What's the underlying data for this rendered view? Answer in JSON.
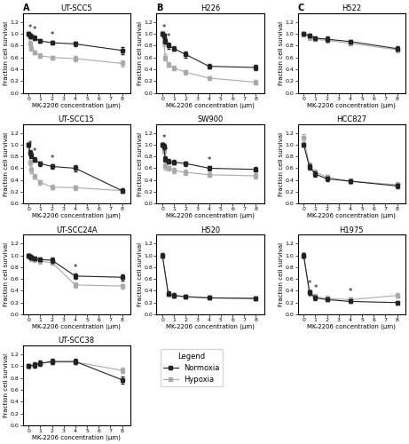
{
  "legend": "upper left",
  "legend_title": "Legend",
  "chart_data": [
    {
      "type": "line",
      "title": "UT-SCC5",
      "panel_label": "A",
      "xlabel": "MK-2206 concentration (μm)",
      "ylabel": "Fraction cell survival",
      "x": [
        0,
        0.125,
        0.25,
        0.5,
        1,
        2,
        4,
        8
      ],
      "xlim": [
        -0.5,
        8.7
      ],
      "xticks": [
        0,
        1,
        2,
        3,
        4,
        5,
        6,
        7,
        8
      ],
      "ylim": [
        0.0,
        1.35
      ],
      "yticks": [
        0.0,
        0.2,
        0.4,
        0.6,
        0.8,
        1.0,
        1.2
      ],
      "grid": false,
      "series": [
        {
          "name": "Normoxia",
          "color": "#222222",
          "marker": "square",
          "values": [
            1.0,
            0.97,
            0.95,
            0.93,
            0.88,
            0.85,
            0.83,
            0.72
          ],
          "errors": [
            0.03,
            0.04,
            0.03,
            0.04,
            0.03,
            0.03,
            0.04,
            0.06
          ]
        },
        {
          "name": "Hypoxia",
          "color": "#aaaaaa",
          "marker": "square",
          "values": [
            1.0,
            0.83,
            0.75,
            0.68,
            0.63,
            0.6,
            0.58,
            0.5
          ],
          "errors": [
            0.04,
            0.05,
            0.04,
            0.03,
            0.04,
            0.03,
            0.04,
            0.05
          ]
        }
      ],
      "annotations": [
        {
          "text": "*",
          "x": 0.125,
          "y": 1.04
        },
        {
          "text": "*",
          "x": 0.5,
          "y": 1.0
        },
        {
          "text": "*",
          "x": 2,
          "y": 0.91
        }
      ]
    },
    {
      "type": "line",
      "title": "H226",
      "panel_label": "B",
      "xlabel": "MK-2206 concentration (μm)",
      "ylabel": "Fraction cell survival",
      "x": [
        0,
        0.125,
        0.25,
        0.5,
        1,
        2,
        4,
        8
      ],
      "xlim": [
        -0.5,
        8.7
      ],
      "xticks": [
        0,
        1,
        2,
        3,
        4,
        5,
        6,
        7,
        8
      ],
      "ylim": [
        0.0,
        1.35
      ],
      "yticks": [
        0.0,
        0.2,
        0.4,
        0.6,
        0.8,
        1.0,
        1.2
      ],
      "grid": false,
      "series": [
        {
          "name": "Normoxia",
          "color": "#222222",
          "marker": "square",
          "values": [
            1.0,
            0.97,
            0.88,
            0.8,
            0.75,
            0.65,
            0.45,
            0.43
          ],
          "errors": [
            0.03,
            0.04,
            0.04,
            0.05,
            0.04,
            0.05,
            0.04,
            0.04
          ]
        },
        {
          "name": "Hypoxia",
          "color": "#aaaaaa",
          "marker": "square",
          "values": [
            1.0,
            0.85,
            0.6,
            0.48,
            0.42,
            0.35,
            0.25,
            0.18
          ],
          "errors": [
            0.05,
            0.06,
            0.05,
            0.04,
            0.04,
            0.04,
            0.03,
            0.04
          ]
        }
      ],
      "annotations": [
        {
          "text": "*",
          "x": 0.125,
          "y": 1.04
        },
        {
          "text": "*",
          "x": 0.5,
          "y": 0.88
        }
      ]
    },
    {
      "type": "line",
      "title": "H522",
      "panel_label": "C",
      "xlabel": "MK-2206 concentration (μm)",
      "ylabel": "Fraction cell survival",
      "x": [
        0,
        0.5,
        1,
        2,
        4,
        8
      ],
      "xlim": [
        -0.5,
        8.7
      ],
      "xticks": [
        0,
        1,
        2,
        3,
        4,
        5,
        6,
        7,
        8
      ],
      "ylim": [
        0.0,
        1.35
      ],
      "yticks": [
        0.0,
        0.2,
        0.4,
        0.6,
        0.8,
        1.0,
        1.2
      ],
      "grid": false,
      "series": [
        {
          "name": "Normoxia",
          "color": "#222222",
          "marker": "square",
          "values": [
            1.0,
            0.97,
            0.93,
            0.91,
            0.87,
            0.75
          ],
          "errors": [
            0.03,
            0.03,
            0.03,
            0.04,
            0.03,
            0.04
          ]
        },
        {
          "name": "Hypoxia",
          "color": "#aaaaaa",
          "marker": "square",
          "values": [
            1.0,
            0.94,
            0.91,
            0.89,
            0.84,
            0.73
          ],
          "errors": [
            0.04,
            0.04,
            0.03,
            0.04,
            0.04,
            0.04
          ]
        }
      ]
    },
    {
      "type": "line",
      "title": "UT-SCC15",
      "xlabel": "MK-2206 concentration (μm)",
      "ylabel": "Fraction cell survival",
      "x": [
        0,
        0.125,
        0.25,
        0.5,
        1,
        2,
        4,
        8
      ],
      "xlim": [
        -0.5,
        8.7
      ],
      "xticks": [
        0,
        1,
        2,
        3,
        4,
        5,
        6,
        7,
        8
      ],
      "ylim": [
        0.0,
        1.35
      ],
      "yticks": [
        0.0,
        0.2,
        0.4,
        0.6,
        0.8,
        1.0,
        1.2
      ],
      "grid": false,
      "series": [
        {
          "name": "Normoxia",
          "color": "#222222",
          "marker": "square",
          "values": [
            1.0,
            0.87,
            0.82,
            0.75,
            0.68,
            0.63,
            0.6,
            0.22
          ],
          "errors": [
            0.03,
            0.04,
            0.04,
            0.04,
            0.04,
            0.04,
            0.05,
            0.04
          ]
        },
        {
          "name": "Hypoxia",
          "color": "#aaaaaa",
          "marker": "square",
          "values": [
            1.0,
            0.7,
            0.57,
            0.46,
            0.36,
            0.28,
            0.27,
            0.22
          ],
          "errors": [
            0.05,
            0.05,
            0.05,
            0.04,
            0.04,
            0.04,
            0.04,
            0.04
          ]
        }
      ],
      "annotations": [
        {
          "text": "*",
          "x": 0.125,
          "y": 0.94
        },
        {
          "text": "*",
          "x": 0.5,
          "y": 0.82
        },
        {
          "text": "*",
          "x": 2,
          "y": 0.7
        }
      ]
    },
    {
      "type": "line",
      "title": "SW900",
      "xlabel": "MK-2206 concentration (μm)",
      "ylabel": "Fraction cell survival",
      "x": [
        0,
        0.125,
        0.25,
        0.5,
        1,
        2,
        4,
        8
      ],
      "xlim": [
        -0.5,
        8.7
      ],
      "xticks": [
        0,
        1,
        2,
        3,
        4,
        5,
        6,
        7,
        8
      ],
      "ylim": [
        0.0,
        1.35
      ],
      "yticks": [
        0.0,
        0.2,
        0.4,
        0.6,
        0.8,
        1.0,
        1.2
      ],
      "grid": false,
      "series": [
        {
          "name": "Normoxia",
          "color": "#222222",
          "marker": "square",
          "values": [
            1.0,
            0.97,
            0.76,
            0.72,
            0.7,
            0.68,
            0.6,
            0.58
          ],
          "errors": [
            0.03,
            0.04,
            0.05,
            0.04,
            0.04,
            0.04,
            0.04,
            0.04
          ]
        },
        {
          "name": "Hypoxia",
          "color": "#aaaaaa",
          "marker": "square",
          "values": [
            1.0,
            0.9,
            0.63,
            0.6,
            0.56,
            0.53,
            0.49,
            0.47
          ],
          "errors": [
            0.04,
            0.05,
            0.05,
            0.04,
            0.04,
            0.04,
            0.04,
            0.04
          ]
        }
      ],
      "annotations": [
        {
          "text": "*",
          "x": 0.125,
          "y": 1.04
        },
        {
          "text": "*",
          "x": 0.25,
          "y": 0.84
        },
        {
          "text": "*",
          "x": 4,
          "y": 0.67
        }
      ]
    },
    {
      "type": "line",
      "title": "HCC827",
      "xlabel": "MK-2206 concentration (μm)",
      "ylabel": "Fraction cell survival",
      "x": [
        0,
        0.5,
        1,
        2,
        4,
        8
      ],
      "xlim": [
        -0.5,
        8.7
      ],
      "xticks": [
        0,
        1,
        2,
        3,
        4,
        5,
        6,
        7,
        8
      ],
      "ylim": [
        0.0,
        1.35
      ],
      "yticks": [
        0.0,
        0.2,
        0.4,
        0.6,
        0.8,
        1.0,
        1.2
      ],
      "grid": false,
      "series": [
        {
          "name": "Normoxia",
          "color": "#222222",
          "marker": "square",
          "values": [
            1.0,
            0.62,
            0.5,
            0.42,
            0.38,
            0.3
          ],
          "errors": [
            0.03,
            0.04,
            0.04,
            0.04,
            0.03,
            0.04
          ]
        },
        {
          "name": "Hypoxia",
          "color": "#aaaaaa",
          "marker": "square",
          "values": [
            1.12,
            0.65,
            0.53,
            0.45,
            0.38,
            0.32
          ],
          "errors": [
            0.06,
            0.05,
            0.04,
            0.04,
            0.04,
            0.04
          ]
        }
      ]
    },
    {
      "type": "line",
      "title": "UT-SCC24A",
      "xlabel": "MK-2206 concentration (μm)",
      "ylabel": "Fraction cell survival",
      "x": [
        0,
        0.125,
        0.25,
        0.5,
        1,
        2,
        4,
        8
      ],
      "xlim": [
        -0.5,
        8.7
      ],
      "xticks": [
        0,
        1,
        2,
        3,
        4,
        5,
        6,
        7,
        8
      ],
      "ylim": [
        0.0,
        1.35
      ],
      "yticks": [
        0.0,
        0.2,
        0.4,
        0.6,
        0.8,
        1.0,
        1.2
      ],
      "grid": false,
      "series": [
        {
          "name": "Normoxia",
          "color": "#222222",
          "marker": "square",
          "values": [
            1.0,
            0.98,
            0.97,
            0.95,
            0.93,
            0.92,
            0.65,
            0.63
          ],
          "errors": [
            0.03,
            0.03,
            0.03,
            0.03,
            0.03,
            0.04,
            0.05,
            0.05
          ]
        },
        {
          "name": "Hypoxia",
          "color": "#aaaaaa",
          "marker": "square",
          "values": [
            1.0,
            0.98,
            0.95,
            0.93,
            0.9,
            0.88,
            0.5,
            0.48
          ],
          "errors": [
            0.04,
            0.04,
            0.04,
            0.04,
            0.04,
            0.04,
            0.04,
            0.04
          ]
        }
      ],
      "annotations": [
        {
          "text": "*",
          "x": 4,
          "y": 0.73
        }
      ]
    },
    {
      "type": "line",
      "title": "H520",
      "xlabel": "MK-2206 concentration (μm)",
      "ylabel": "Fraction cell survival",
      "x": [
        0,
        0.5,
        1,
        2,
        4,
        8
      ],
      "xlim": [
        -0.5,
        8.7
      ],
      "xticks": [
        0,
        1,
        2,
        3,
        4,
        5,
        6,
        7,
        8
      ],
      "ylim": [
        0.0,
        1.35
      ],
      "yticks": [
        0.0,
        0.2,
        0.4,
        0.6,
        0.8,
        1.0,
        1.2
      ],
      "grid": false,
      "series": [
        {
          "name": "Normoxia",
          "color": "#222222",
          "marker": "square",
          "values": [
            1.0,
            0.35,
            0.32,
            0.3,
            0.28,
            0.27
          ],
          "errors": [
            0.04,
            0.04,
            0.04,
            0.03,
            0.03,
            0.03
          ]
        },
        {
          "name": "Hypoxia",
          "color": "#aaaaaa",
          "marker": "square",
          "values": [
            1.0,
            0.35,
            0.32,
            0.3,
            0.28,
            0.27
          ],
          "errors": [
            0.04,
            0.04,
            0.04,
            0.03,
            0.03,
            0.03
          ]
        }
      ]
    },
    {
      "type": "line",
      "title": "H1975",
      "xlabel": "MK-2206 concentration (μm)",
      "ylabel": "Fraction cell survival",
      "x": [
        0,
        0.5,
        1,
        2,
        4,
        8
      ],
      "xlim": [
        -0.5,
        8.7
      ],
      "xticks": [
        0,
        1,
        2,
        3,
        4,
        5,
        6,
        7,
        8
      ],
      "ylim": [
        0.0,
        1.35
      ],
      "yticks": [
        0.0,
        0.2,
        0.4,
        0.6,
        0.8,
        1.0,
        1.2
      ],
      "grid": false,
      "series": [
        {
          "name": "Normoxia",
          "color": "#222222",
          "marker": "square",
          "values": [
            1.0,
            0.37,
            0.28,
            0.25,
            0.22,
            0.2
          ],
          "errors": [
            0.04,
            0.04,
            0.04,
            0.03,
            0.03,
            0.03
          ]
        },
        {
          "name": "Hypoxia",
          "color": "#aaaaaa",
          "marker": "square",
          "values": [
            1.0,
            0.37,
            0.3,
            0.27,
            0.25,
            0.32
          ],
          "errors": [
            0.05,
            0.05,
            0.04,
            0.04,
            0.04,
            0.04
          ]
        }
      ],
      "annotations": [
        {
          "text": "*",
          "x": 0.5,
          "y": 0.45
        },
        {
          "text": "*",
          "x": 1,
          "y": 0.37
        },
        {
          "text": "*",
          "x": 4,
          "y": 0.32
        }
      ]
    },
    {
      "type": "line",
      "title": "UT-SCC38",
      "xlabel": "MK-2206 concentration (μm)",
      "ylabel": "Fraction cell survival",
      "x": [
        0,
        0.5,
        1,
        2,
        4,
        8
      ],
      "xlim": [
        -0.5,
        8.7
      ],
      "xticks": [
        0,
        1,
        2,
        3,
        4,
        5,
        6,
        7,
        8
      ],
      "ylim": [
        0.0,
        1.35
      ],
      "yticks": [
        0.0,
        0.2,
        0.4,
        0.6,
        0.8,
        1.0,
        1.2
      ],
      "grid": false,
      "series": [
        {
          "name": "Normoxia",
          "color": "#222222",
          "marker": "square",
          "values": [
            1.0,
            1.02,
            1.05,
            1.08,
            1.08,
            0.77
          ],
          "errors": [
            0.03,
            0.04,
            0.04,
            0.04,
            0.04,
            0.06
          ]
        },
        {
          "name": "Hypoxia",
          "color": "#aaaaaa",
          "marker": "square",
          "values": [
            1.0,
            1.02,
            1.05,
            1.07,
            1.07,
            0.93
          ],
          "errors": [
            0.04,
            0.04,
            0.04,
            0.04,
            0.04,
            0.05
          ]
        }
      ]
    }
  ]
}
